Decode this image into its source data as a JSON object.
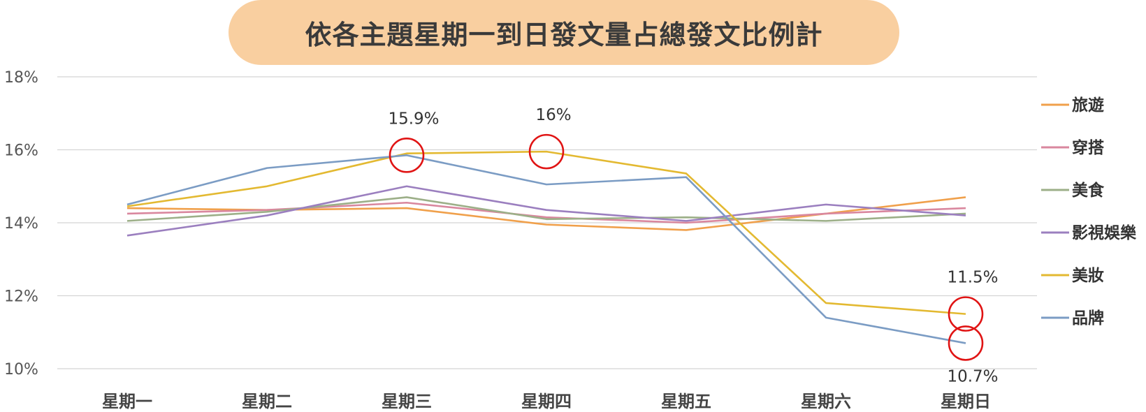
{
  "chart_data": {
    "type": "line",
    "title": "依各主題星期一到日發文量占總發文比例計",
    "categories": [
      "星期一",
      "星期二",
      "星期三",
      "星期四",
      "星期五",
      "星期六",
      "星期日"
    ],
    "y_ticks": [
      "10%",
      "12%",
      "14%",
      "16%",
      "18%"
    ],
    "ylim": [
      10,
      18
    ],
    "grid": true,
    "legend_position": "right",
    "series": [
      {
        "name": "旅遊",
        "color": "#f0a04b",
        "values": [
          14.4,
          14.35,
          14.4,
          13.95,
          13.8,
          14.25,
          14.7
        ]
      },
      {
        "name": "穿搭",
        "color": "#d9879e",
        "values": [
          14.25,
          14.35,
          14.55,
          14.15,
          14.0,
          14.25,
          14.4
        ]
      },
      {
        "name": "美食",
        "color": "#9caf88",
        "values": [
          14.05,
          14.3,
          14.7,
          14.1,
          14.15,
          14.05,
          14.25
        ]
      },
      {
        "name": "影視娛樂",
        "color": "#9b7fbf",
        "values": [
          13.65,
          14.2,
          15.0,
          14.35,
          14.05,
          14.5,
          14.2
        ]
      },
      {
        "name": "美妝",
        "color": "#e3b931",
        "values": [
          14.45,
          15.0,
          15.9,
          15.95,
          15.35,
          11.8,
          11.5
        ]
      },
      {
        "name": "品牌",
        "color": "#7b9cc4",
        "values": [
          14.5,
          15.5,
          15.85,
          15.05,
          15.25,
          11.4,
          10.7
        ]
      }
    ],
    "annotations": [
      {
        "text": "15.9%",
        "series": 5,
        "index": 2,
        "label_side": "above"
      },
      {
        "text": "16%",
        "series": 4,
        "index": 3,
        "label_side": "above"
      },
      {
        "text": "11.5%",
        "series": 4,
        "index": 6,
        "label_side": "above"
      },
      {
        "text": "10.7%",
        "series": 5,
        "index": 6,
        "label_side": "below"
      }
    ]
  }
}
